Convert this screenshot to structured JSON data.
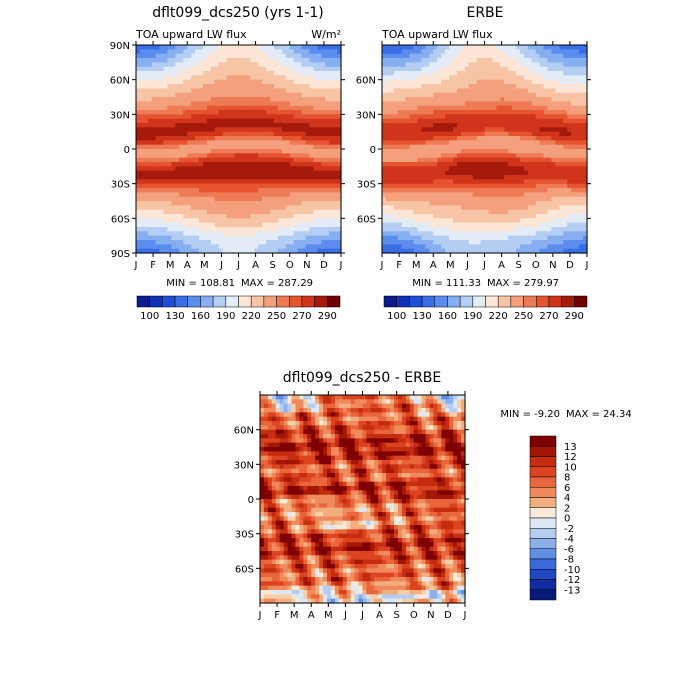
{
  "chart_data": [
    {
      "type": "heatmap",
      "title": "dflt099_dcs250 (yrs 1-1)",
      "subtitle_left": "TOA upward LW flux",
      "units": "W/m²",
      "xlabel": "",
      "ylabel": "",
      "x_ticks": [
        "J",
        "F",
        "M",
        "A",
        "M",
        "J",
        "J",
        "A",
        "S",
        "O",
        "N",
        "D",
        "J"
      ],
      "y_ticks": [
        "90N",
        "60N",
        "30N",
        "0",
        "30S",
        "60S",
        "90S"
      ],
      "ylim": [
        -90,
        90
      ],
      "min_label": "MIN = 108.81",
      "max_label": "MAX = 287.29",
      "min": 108.81,
      "max": 287.29,
      "colorbar_labels": [
        "100",
        "130",
        "160",
        "190",
        "220",
        "250",
        "270",
        "290"
      ],
      "colorbar_levels": [
        100,
        115,
        130,
        145,
        160,
        175,
        190,
        205,
        220,
        235,
        250,
        260,
        270,
        280,
        290
      ],
      "field": "lw_model"
    },
    {
      "type": "heatmap",
      "title": "ERBE",
      "subtitle_left": "TOA upward LW flux",
      "xlabel": "",
      "ylabel": "",
      "x_ticks": [
        "J",
        "F",
        "M",
        "A",
        "M",
        "J",
        "J",
        "A",
        "S",
        "O",
        "N",
        "D",
        "J"
      ],
      "y_ticks": [
        "60N",
        "30N",
        "0",
        "30S",
        "60S"
      ],
      "ylim": [
        -90,
        90
      ],
      "min_label": "MIN = 111.33",
      "max_label": "MAX = 279.97",
      "min": 111.33,
      "max": 279.97,
      "colorbar_labels": [
        "100",
        "130",
        "160",
        "190",
        "220",
        "250",
        "270",
        "290"
      ],
      "colorbar_levels": [
        100,
        115,
        130,
        145,
        160,
        175,
        190,
        205,
        220,
        235,
        250,
        260,
        270,
        280,
        290
      ],
      "field": "lw_obs"
    },
    {
      "type": "heatmap",
      "title": "dflt099_dcs250 - ERBE",
      "xlabel": "",
      "ylabel": "",
      "x_ticks": [
        "J",
        "F",
        "M",
        "A",
        "M",
        "J",
        "J",
        "A",
        "S",
        "O",
        "N",
        "D",
        "J"
      ],
      "y_ticks": [
        "60N",
        "30N",
        "0",
        "30S",
        "60S"
      ],
      "ylim": [
        -90,
        90
      ],
      "min_label": "MIN =  -9.20",
      "max_label": "MAX =  24.34",
      "min": -9.2,
      "max": 24.34,
      "colorbar_labels": [
        "13",
        "12",
        "10",
        "8",
        "6",
        "4",
        "2",
        "0",
        "-2",
        "-4",
        "-6",
        "-8",
        "-10",
        "-12",
        "-13"
      ],
      "colorbar_levels": [
        -13,
        -12,
        -10,
        -8,
        -6,
        -4,
        -2,
        0,
        2,
        4,
        6,
        8,
        10,
        12,
        13
      ],
      "field": "diff"
    }
  ],
  "colors": {
    "lw_scale": [
      "#0a1a8c",
      "#1030b8",
      "#1f4fd8",
      "#3a6ee6",
      "#5a8ded",
      "#86aef0",
      "#b3cdf3",
      "#e2ebf6",
      "#fde6d6",
      "#f8c4a6",
      "#f4a07c",
      "#ee7b55",
      "#e5542f",
      "#d0341a",
      "#a61a0c",
      "#700000"
    ],
    "diff_scale": [
      "#f7ead8",
      "#f6cfa8",
      "#f3ae80",
      "#ef8a5c",
      "#e9653c",
      "#dc4320",
      "#c52d10",
      "#a51705",
      "#7e0000"
    ],
    "diff_neg": [
      "#dce8f5",
      "#b6cdf0",
      "#8db0ea",
      "#5f8ee2",
      "#3a6ad8",
      "#1f48c2",
      "#0f2da0",
      "#061a78"
    ]
  }
}
